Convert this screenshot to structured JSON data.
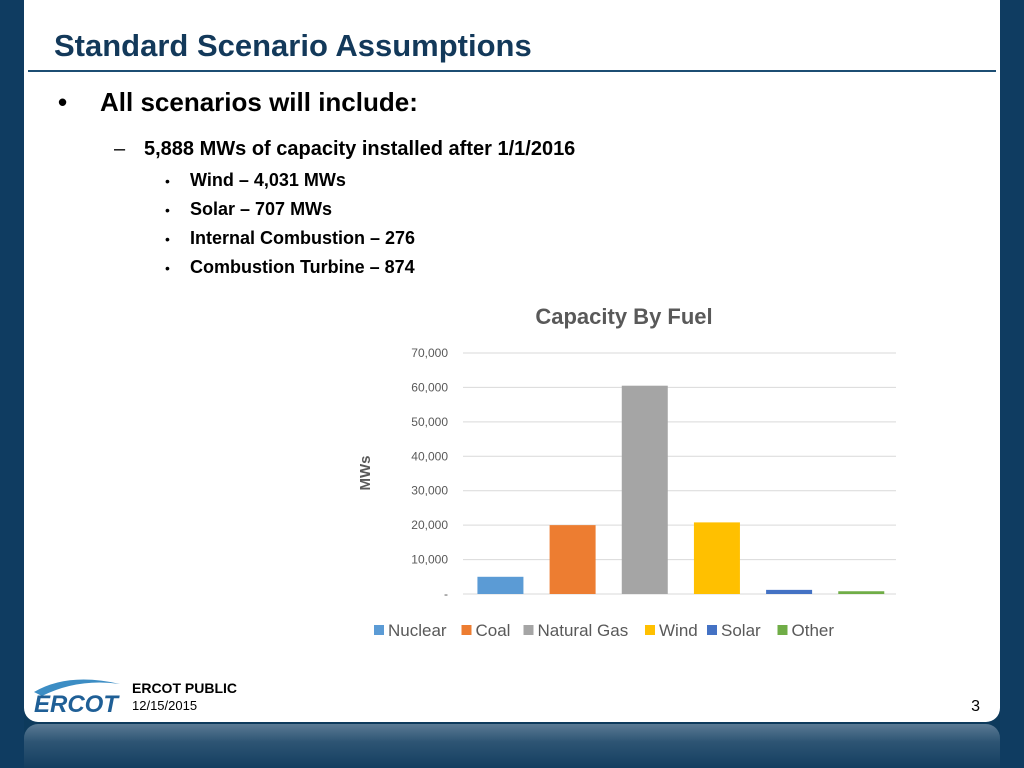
{
  "slide": {
    "title": "Standard Scenario Assumptions",
    "bullet": "All scenarios will include:",
    "sub_bullet": "5,888 MWs of capacity installed after 1/1/2016",
    "items": [
      "Wind – 4,031 MWs",
      "Solar – 707 MWs",
      "Internal Combustion – 276",
      "Combustion Turbine – 874"
    ]
  },
  "footer": {
    "logo_text": "ERCOT",
    "label": "ERCOT PUBLIC",
    "date": "12/15/2015",
    "page": "3"
  },
  "chart_data": {
    "type": "bar",
    "title": "Capacity By Fuel",
    "ylabel": "MWs",
    "xlabel": "",
    "ylim": [
      0,
      70000
    ],
    "yticks": [
      "-",
      "10,000",
      "20,000",
      "30,000",
      "40,000",
      "50,000",
      "60,000",
      "70,000"
    ],
    "grid": true,
    "legend_position": "bottom",
    "categories": [
      "Nuclear",
      "Coal",
      "Natural Gas",
      "Wind",
      "Solar",
      "Other"
    ],
    "values": [
      5000,
      20000,
      60500,
      20800,
      1200,
      800
    ],
    "colors": [
      "#5b9bd5",
      "#ed7d31",
      "#a5a5a5",
      "#ffc000",
      "#4472c4",
      "#70ad47"
    ]
  }
}
